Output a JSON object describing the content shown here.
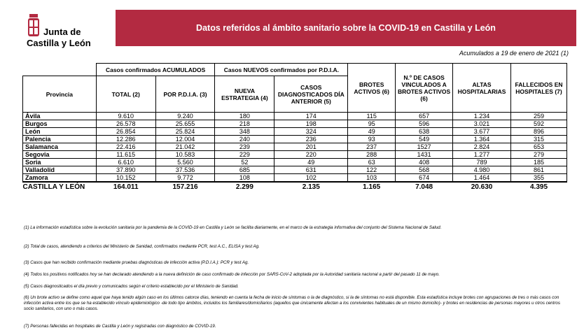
{
  "header": {
    "logo_line1": "Junta de",
    "logo_line2": "Castilla y León",
    "title": "Datos referidos al ámbito sanitario sobre la COVID-19 en Castilla y León",
    "date_note": "Acumulados a 19 de enero de 2021 (1)"
  },
  "colors": {
    "banner": "#b32a41",
    "logo_red": "#b32a41"
  },
  "table": {
    "group_acumulados": "Casos confirmados ACUMULADOS",
    "group_nuevos": "Casos NUEVOS confirmados por P.D.I.A.",
    "col_provincia": "Provincia",
    "col_total": "TOTAL (2)",
    "col_pdia": "POR P.D.I.A. (3)",
    "col_nueva": "NUEVA ESTRATEGIA (4)",
    "col_diag": "CASOS DIAGNOSTICADOS DÍA ANTERIOR (5)",
    "col_brotes": "BROTES ACTIVOS (6)",
    "col_vinc": "N.º DE CASOS VINCULADOS A BROTES ACTIVOS (6)",
    "col_altas": "ALTAS HOSPITALARIAS",
    "col_fallecidos": "FALLECIDOS EN HOSPITALES (7)",
    "rows": [
      [
        "Ávila",
        "9.610",
        "9.240",
        "180",
        "174",
        "115",
        "657",
        "1.234",
        "259"
      ],
      [
        "Burgos",
        "26.578",
        "25.655",
        "218",
        "198",
        "95",
        "596",
        "3.021",
        "592"
      ],
      [
        "León",
        "26.854",
        "25.824",
        "348",
        "324",
        "49",
        "638",
        "3.677",
        "896"
      ],
      [
        "Palencia",
        "12.286",
        "12.004",
        "240",
        "236",
        "93",
        "549",
        "1.364",
        "315"
      ],
      [
        "Salamanca",
        "22.416",
        "21.042",
        "239",
        "201",
        "237",
        "1527",
        "2.824",
        "653"
      ],
      [
        "Segovia",
        "11.615",
        "10.583",
        "229",
        "220",
        "288",
        "1431",
        "1.277",
        "279"
      ],
      [
        "Soria",
        "6.610",
        "5.560",
        "52",
        "49",
        "63",
        "408",
        "789",
        "185"
      ],
      [
        "Valladolid",
        "37.890",
        "37.536",
        "685",
        "631",
        "122",
        "568",
        "4.980",
        "861"
      ],
      [
        "Zamora",
        "10.152",
        "9.772",
        "108",
        "102",
        "103",
        "674",
        "1.464",
        "355"
      ]
    ],
    "total_row": [
      "CASTILLA Y LEÓN",
      "164.011",
      "157.216",
      "2.299",
      "2.135",
      "1.165",
      "7.048",
      "20.630",
      "4.395"
    ]
  },
  "notes": [
    "(1) La información estadística sobre la evolución sanitaria por la pandemia de la COVID-19 en Castilla y León se facilita diariamente, en el marco de la estrategia informativa del conjunto del Sistema Nacional de Salud.",
    "(2) Total de casos, atendiendo a criterios del Ministerio de Sanidad, confirmados mediante PCR, test A.C., ELISA y test Ag.",
    "(3) Casos que han recibido confirmación mediante pruebas diagnósticas de infección activa (P.D.I.A.): PCR y test Ag.",
    "(4) Todos los positivos notificados hoy se han declarado atendiendo a la nueva definición de caso confirmado de infección por SARS-CoV-2 adoptada por la Autoridad sanitaria nacional a partir del pasado 11 de mayo.",
    "(5) Casos diagnosticados el día previo y comunicados según el criterio establecido por el Ministerio de Sanidad.",
    "(6) Un brote activo se define como aquel que haya tenido algún caso en los últimos catorce días, teniendo en cuenta la fecha de inicio de síntomas o la de diagnóstico, si la de síntomas no está disponible. Esta estadística incluye brotes con agrupaciones de tres o más casos con infección activa entre los que se ha establecido vínculo epidemiológico -de todo tipo ámbitos, incluidos los familiares/domiciliarios (aquellos que únicamente afectan a los convivientes habituales de un mismo domicilio)- y brotes en residencias de personas mayores u otros centros socio sanitarios, con uno o más casos.",
    "(7) Personas fallecidas en hospitales de Castilla y León y registradas con diagnóstico de COVID-19."
  ]
}
